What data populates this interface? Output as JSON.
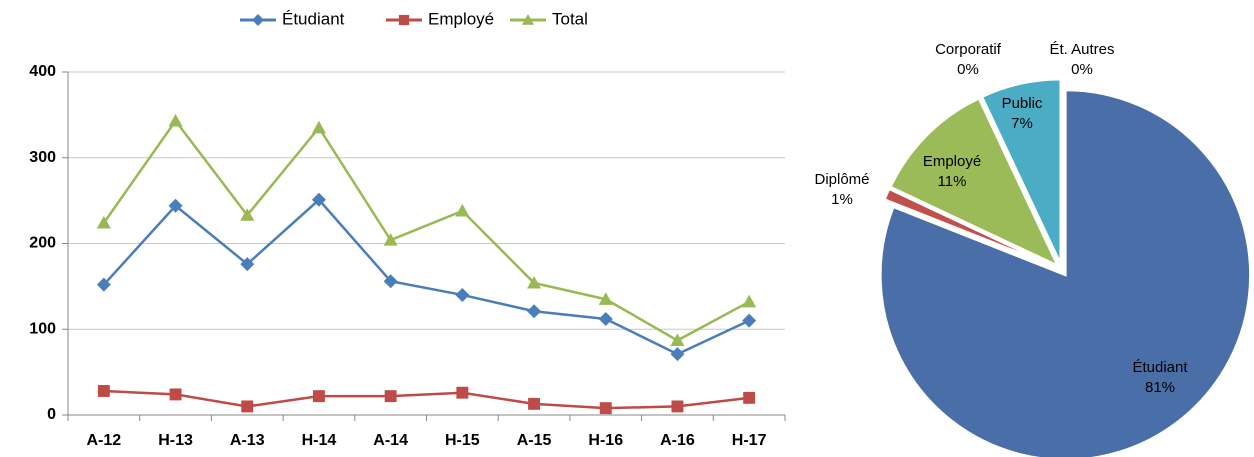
{
  "chart_data": [
    {
      "type": "line",
      "categories": [
        "A-12",
        "H-13",
        "A-13",
        "H-14",
        "A-14",
        "H-15",
        "A-15",
        "H-16",
        "A-16",
        "H-17"
      ],
      "series": [
        {
          "name": "Étudiant",
          "color": "#4a7ebb",
          "values": [
            152,
            244,
            176,
            251,
            156,
            140,
            121,
            112,
            71,
            110
          ]
        },
        {
          "name": "Employé",
          "color": "#be4b48",
          "values": [
            28,
            24,
            10,
            22,
            22,
            26,
            13,
            8,
            10,
            20
          ]
        },
        {
          "name": "Total",
          "color": "#98b954",
          "values": [
            224,
            343,
            233,
            335,
            204,
            238,
            154,
            135,
            87,
            132
          ]
        }
      ],
      "ylim": [
        0,
        400
      ],
      "yticks": [
        0,
        100,
        200,
        300,
        400
      ],
      "grid": true,
      "legend": "top"
    },
    {
      "type": "pie",
      "categories": [
        "Étudiant",
        "Diplômé",
        "Employé",
        "Corporatif",
        "Public",
        "Ét. Autres"
      ],
      "values": [
        81,
        1,
        11,
        0,
        7,
        0
      ],
      "value_labels": [
        "81%",
        "1%",
        "11%",
        "0%",
        "7%",
        "0%"
      ],
      "colors": [
        "#4a6fa8",
        "#c0504d",
        "#9bbb59",
        "#8064a2",
        "#4bacc6",
        "#f79646"
      ]
    }
  ]
}
